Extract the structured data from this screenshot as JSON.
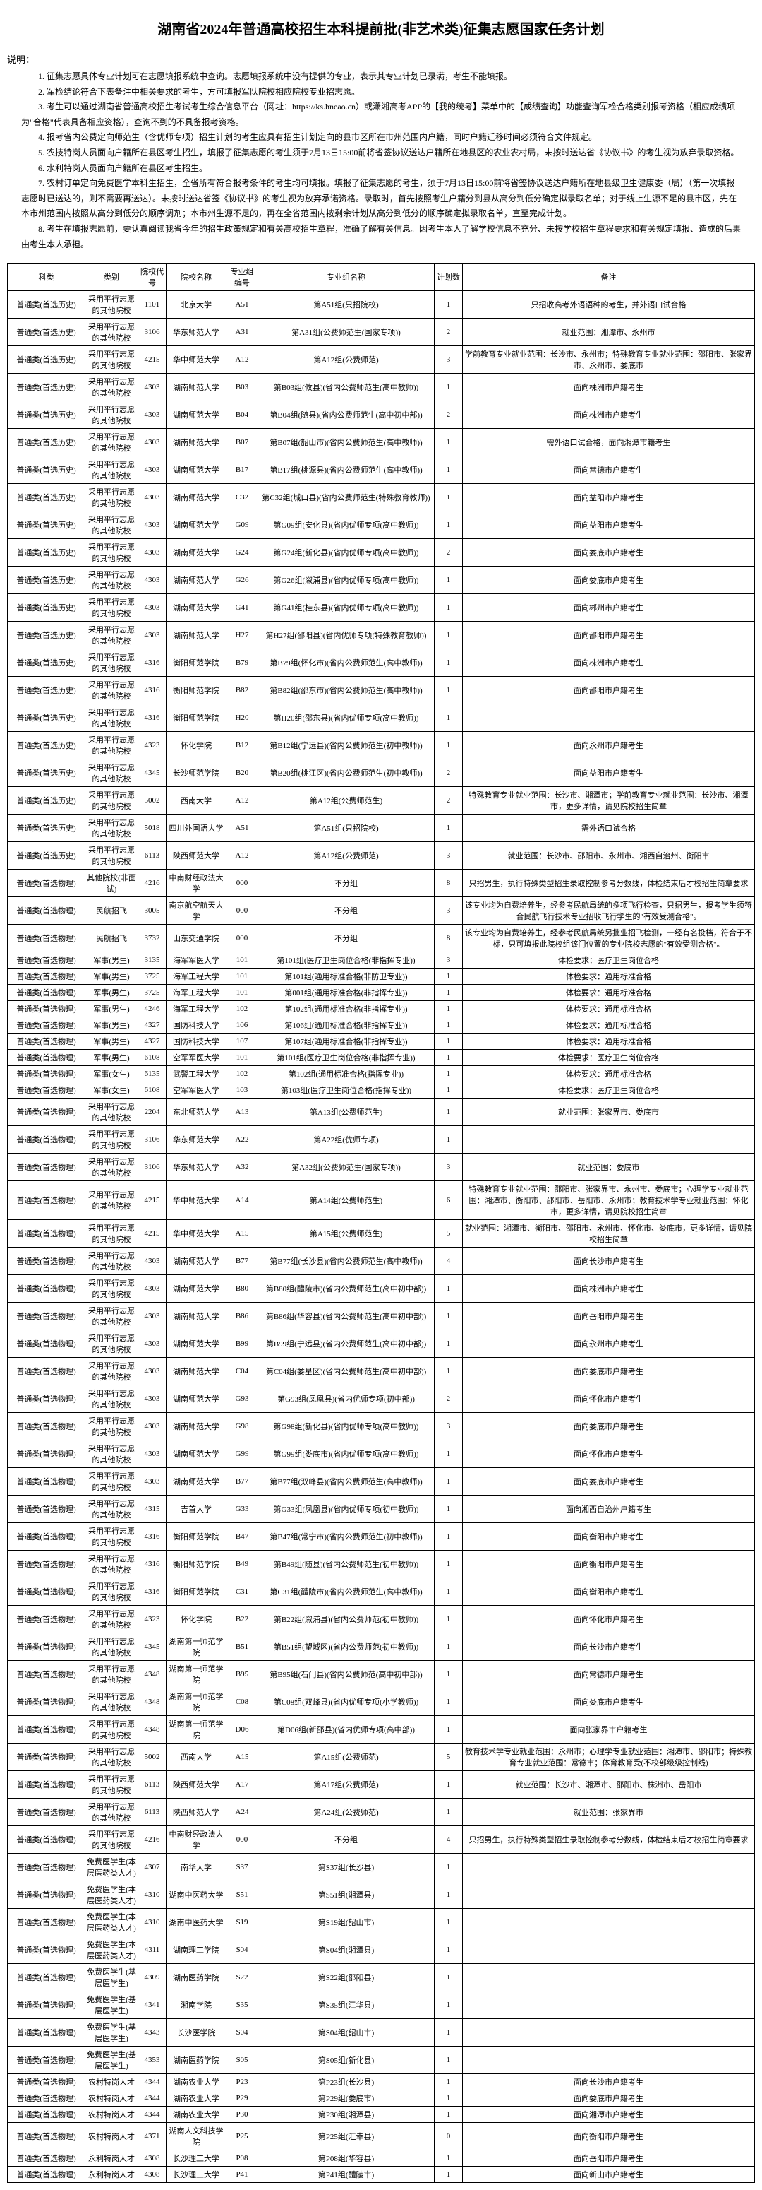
{
  "title": "湖南省2024年普通高校招生本科提前批(非艺术类)征集志愿国家任务计划",
  "notesLabel": "说明：",
  "notes": [
    "1. 征集志愿具体专业计划可在志愿填报系统中查询。志愿填报系统中没有提供的专业，表示其专业计划已录满，考生不能填报。",
    "2. 军检结论符合下表备注中相关要求的考生，方可填报军队院校相应院校专业招志愿。",
    "3. 考生可以通过湖南省普通高校招生考试考生综合信息平台（网址：https://ks.hneao.cn）或潇湘高考APP的【我的统考】菜单中的【成绩查询】功能查询军检合格类别报考资格（相应成绩项为\"合格\"代表具备相应资格），查询不到的不具备报考资格。",
    "4. 报考省内公费定向师范生（含优师专项）招生计划的考生应具有招生计划定向的县市区所在市州范围内户籍，同时户籍迁移时间必须符合文件规定。",
    "5. 农技特岗人员面向户籍所在县区考生招生，填报了征集志愿的考生须于7月13日15:00前将省签协议送达户籍所在地县区的农业农村局，未按时送达省《协议书》的考生视为放弃录取资格。",
    "6. 水利特岗人员面向户籍所在县区考生招生。",
    "7. 农村订单定向免费医学本科生招生，全省所有符合报考条件的考生均可填报。填报了征集志愿的考生，须于7月13日15:00前将省签协议送达户籍所在地县级卫生健康委（局）（第一次填报志愿时已送达的，则不需要再送达）。未按时送达省签《协议书》的考生视为放弃承诺资格。录取时，首先按照考生户籍分到县从高分到低分确定拟录取名单；对于线上生源不足的县市区，先在本市州范围内按照从高分到低分的顺序调剂；本市州生源不足的，再在全省范围内按剩余计划从高分到低分的顺序确定拟录取名单，直至完成计划。",
    "8. 考生在填报志愿前，要认真阅读我省今年的招生政策规定和有关高校招生章程，准确了解有关信息。因考生本人了解学校信息不充分、未按学校招生章程要求和有关规定填报、造成的后果由考生本人承担。"
  ],
  "headers": [
    "科类",
    "类别",
    "院校代号",
    "院校名称",
    "专业组编号",
    "专业组名称",
    "计划数",
    "备注"
  ],
  "rows": [
    [
      "普通类(首选历史)",
      "采用平行志愿的其他院校",
      "1101",
      "北京大学",
      "A51",
      "第A51组(只招院校)",
      "1",
      "只招收高考外语语种的考生，并外语口试合格"
    ],
    [
      "普通类(首选历史)",
      "采用平行志愿的其他院校",
      "3106",
      "华东师范大学",
      "A31",
      "第A31组(公费师范生(国家专项))",
      "2",
      "就业范围：湘潭市、永州市"
    ],
    [
      "普通类(首选历史)",
      "采用平行志愿的其他院校",
      "4215",
      "华中师范大学",
      "A12",
      "第A12组(公费师范)",
      "3",
      "学前教育专业就业范围：长沙市、永州市；特殊教育专业就业范围：邵阳市、张家界市、永州市、娄底市"
    ],
    [
      "普通类(首选历史)",
      "采用平行志愿的其他院校",
      "4303",
      "湖南师范大学",
      "B03",
      "第B03组(攸县)(省内公费师范生(高中教师))",
      "1",
      "面向株洲市户籍考生"
    ],
    [
      "普通类(首选历史)",
      "采用平行志愿的其他院校",
      "4303",
      "湖南师范大学",
      "B04",
      "第B04组(随县)(省内公费师范生(高中初中部))",
      "2",
      "面向株洲市户籍考生"
    ],
    [
      "普通类(首选历史)",
      "采用平行志愿的其他院校",
      "4303",
      "湖南师范大学",
      "B07",
      "第B07组(韶山市)(省内公费师范生(高中教师))",
      "1",
      "需外语口试合格，面向湘潭市籍考生"
    ],
    [
      "普通类(首选历史)",
      "采用平行志愿的其他院校",
      "4303",
      "湖南师范大学",
      "B17",
      "第B17组(桃源县)(省内公费师范生(高中教师))",
      "1",
      "面向常德市户籍考生"
    ],
    [
      "普通类(首选历史)",
      "采用平行志愿的其他院校",
      "4303",
      "湖南师范大学",
      "C32",
      "第C32组(城口县)(省内公费师范生(特殊教育教师))",
      "1",
      "面向益阳市户籍考生"
    ],
    [
      "普通类(首选历史)",
      "采用平行志愿的其他院校",
      "4303",
      "湖南师范大学",
      "G09",
      "第G09组(安化县)(省内优师专项(高中教师))",
      "1",
      "面向益阳市户籍考生"
    ],
    [
      "普通类(首选历史)",
      "采用平行志愿的其他院校",
      "4303",
      "湖南师范大学",
      "G24",
      "第G24组(新化县)(省内优师专项(高中教师))",
      "2",
      "面向娄底市户籍考生"
    ],
    [
      "普通类(首选历史)",
      "采用平行志愿的其他院校",
      "4303",
      "湖南师范大学",
      "G26",
      "第G26组(溆浦县)(省内优师专项(高中教师))",
      "1",
      "面向娄底市户籍考生"
    ],
    [
      "普通类(首选历史)",
      "采用平行志愿的其他院校",
      "4303",
      "湖南师范大学",
      "G41",
      "第G41组(桂东县)(省内优师专项(高中教师))",
      "1",
      "面向郴州市户籍考生"
    ],
    [
      "普通类(首选历史)",
      "采用平行志愿的其他院校",
      "4303",
      "湖南师范大学",
      "H27",
      "第H27组(邵阳县)(省内优师专项(特殊教育教师))",
      "1",
      "面向邵阳市户籍考生"
    ],
    [
      "普通类(首选历史)",
      "采用平行志愿的其他院校",
      "4316",
      "衡阳师范学院",
      "B79",
      "第B79组(怀化市)(省内公费师范生(高中教师))",
      "1",
      "面向株洲市户籍考生"
    ],
    [
      "普通类(首选历史)",
      "采用平行志愿的其他院校",
      "4316",
      "衡阳师范学院",
      "B82",
      "第B82组(邵东市)(省内公费师范生(高中教师))",
      "1",
      "面向邵阳市户籍考生"
    ],
    [
      "普通类(首选历史)",
      "采用平行志愿的其他院校",
      "4316",
      "衡阳师范学院",
      "H20",
      "第H20组(邵东县)(省内优师专项(高中教师))",
      "1",
      ""
    ],
    [
      "普通类(首选历史)",
      "采用平行志愿的其他院校",
      "4323",
      "怀化学院",
      "B12",
      "第B12组(宁远县)(省内公费师范生(初中教师))",
      "1",
      "面向永州市户籍考生"
    ],
    [
      "普通类(首选历史)",
      "采用平行志愿的其他院校",
      "4345",
      "长沙师范学院",
      "B20",
      "第B20组(桃江区)(省内公费师范生(初中教师))",
      "2",
      "面向益阳市户籍考生"
    ],
    [
      "普通类(首选历史)",
      "采用平行志愿的其他院校",
      "5002",
      "西南大学",
      "A12",
      "第A12组(公费师范生)",
      "2",
      "特殊教育专业就业范围：长沙市、湘潭市；学前教育专业就业范围：长沙市、湘潭市，更多详情，请见院校招生简章"
    ],
    [
      "普通类(首选历史)",
      "采用平行志愿的其他院校",
      "5018",
      "四川外国语大学",
      "A51",
      "第A51组(只招院校)",
      "1",
      "需外语口试合格"
    ],
    [
      "普通类(首选历史)",
      "采用平行志愿的其他院校",
      "6113",
      "陕西师范大学",
      "A12",
      "第A12组(公费师范)",
      "3",
      "就业范围：长沙市、邵阳市、永州市、湘西自治州、衡阳市"
    ],
    [
      "普通类(首选物理)",
      "其他院校(非面试)",
      "4216",
      "中南财经政法大学",
      "000",
      "不分组",
      "8",
      "只招男生，执行特殊类型招生录取控制参考分数线，体检结束后才校招生简章要求"
    ],
    [
      "普通类(首选物理)",
      "民航招飞",
      "3005",
      "南京航空航天大学",
      "000",
      "不分组",
      "3",
      "该专业均为自费培养生，经参考民航局统的多项飞行检查，只招男生，报考学生须符合民航飞行技术专业招收飞行学生的\"有效受测合格\"。"
    ],
    [
      "普通类(首选物理)",
      "民航招飞",
      "3732",
      "山东交通学院",
      "000",
      "不分组",
      "8",
      "该专业均为自费培养生，经参考民航局统另批业招飞检测，一经有名投档，符合于不标，只可填报此院校组该门位置的专业院校志愿的\"有效受测合格\"。"
    ],
    [
      "普通类(首选物理)",
      "军事(男生)",
      "3135",
      "海军军医大学",
      "101",
      "第101组(医疗卫生岗位合格(非指挥专业))",
      "3",
      "体检要求：医疗卫生岗位合格"
    ],
    [
      "普通类(首选物理)",
      "军事(男生)",
      "3725",
      "海军工程大学",
      "101",
      "第101组(通用标准合格(非防卫专业))",
      "1",
      "体检要求：通用标准合格"
    ],
    [
      "普通类(首选物理)",
      "军事(男生)",
      "3725",
      "海军工程大学",
      "101",
      "第001组(通用标准合格(非指挥专业))",
      "1",
      "体检要求：通用标准合格"
    ],
    [
      "普通类(首选物理)",
      "军事(男生)",
      "4246",
      "海军工程大学",
      "102",
      "第102组(通用标准合格(非指挥专业))",
      "1",
      "体检要求：通用标准合格"
    ],
    [
      "普通类(首选物理)",
      "军事(男生)",
      "4327",
      "国防科技大学",
      "106",
      "第106组(通用标准合格(非指挥专业))",
      "1",
      "体检要求：通用标准合格"
    ],
    [
      "普通类(首选物理)",
      "军事(男生)",
      "4327",
      "国防科技大学",
      "107",
      "第107组(通用标准合格(非指挥专业))",
      "1",
      "体检要求：通用标准合格"
    ],
    [
      "普通类(首选物理)",
      "军事(男生)",
      "6108",
      "空军军医大学",
      "101",
      "第101组(医疗卫生岗位合格(非指挥专业))",
      "1",
      "体检要求：医疗卫生岗位合格"
    ],
    [
      "普通类(首选物理)",
      "军事(女生)",
      "6135",
      "武警工程大学",
      "102",
      "第102组(通用标准合格(指挥专业))",
      "1",
      "体检要求：通用标准合格"
    ],
    [
      "普通类(首选物理)",
      "军事(女生)",
      "6108",
      "空军军医大学",
      "103",
      "第103组(医疗卫生岗位合格(指挥专业))",
      "1",
      "体检要求：医疗卫生岗位合格"
    ],
    [
      "普通类(首选物理)",
      "采用平行志愿的其他院校",
      "2204",
      "东北师范大学",
      "A13",
      "第A13组(公费师范生)",
      "1",
      "就业范围：张家界市、娄底市"
    ],
    [
      "普通类(首选物理)",
      "采用平行志愿的其他院校",
      "3106",
      "华东师范大学",
      "A22",
      "第A22组(优师专项)",
      "1",
      ""
    ],
    [
      "普通类(首选物理)",
      "采用平行志愿的其他院校",
      "3106",
      "华东师范大学",
      "A32",
      "第A32组(公费师范生(国家专项))",
      "3",
      "就业范围：娄底市"
    ],
    [
      "普通类(首选物理)",
      "采用平行志愿的其他院校",
      "4215",
      "华中师范大学",
      "A14",
      "第A14组(公费师范生)",
      "6",
      "特殊教育专业就业范围：邵阳市、张家界市、永州市、娄底市；心理学专业就业范围：湘潭市、衡阳市、邵阳市、岳阳市、永州市；教育技术学专业就业范围：怀化市，更多详情，请见院校招生简章"
    ],
    [
      "普通类(首选物理)",
      "采用平行志愿的其他院校",
      "4215",
      "华中师范大学",
      "A15",
      "第A15组(公费师范生)",
      "5",
      "就业范围：湘潭市、衡阳市、邵阳市、永州市、怀化市、娄底市，更多详情，请见院校招生简章"
    ],
    [
      "普通类(首选物理)",
      "采用平行志愿的其他院校",
      "4303",
      "湖南师范大学",
      "B77",
      "第B77组(长沙县)(省内公费师范生(高中教师))",
      "4",
      "面向长沙市户籍考生"
    ],
    [
      "普通类(首选物理)",
      "采用平行志愿的其他院校",
      "4303",
      "湖南师范大学",
      "B80",
      "第B80组(醴陵市)(省内公费师范生(高中初中部))",
      "1",
      "面向株洲市户籍考生"
    ],
    [
      "普通类(首选物理)",
      "采用平行志愿的其他院校",
      "4303",
      "湖南师范大学",
      "B86",
      "第B86组(华容县)(省内公费师范生(高中初中部))",
      "1",
      "面向岳阳市户籍考生"
    ],
    [
      "普通类(首选物理)",
      "采用平行志愿的其他院校",
      "4303",
      "湖南师范大学",
      "B99",
      "第B99组(宁远县)(省内公费师范生(高中初中部))",
      "1",
      "面向永州市户籍考生"
    ],
    [
      "普通类(首选物理)",
      "采用平行志愿的其他院校",
      "4303",
      "湖南师范大学",
      "C04",
      "第C04组(娄星区)(省内公费师范生(高中初中部))",
      "1",
      "面向娄底市户籍考生"
    ],
    [
      "普通类(首选物理)",
      "采用平行志愿的其他院校",
      "4303",
      "湖南师范大学",
      "G93",
      "第G93组(凤凰县)(省内优师专项(初中部))",
      "2",
      "面向怀化市户籍考生"
    ],
    [
      "普通类(首选物理)",
      "采用平行志愿的其他院校",
      "4303",
      "湖南师范大学",
      "G98",
      "第G98组(新化县)(省内优师专项(高中教师))",
      "3",
      "面向娄底市户籍考生"
    ],
    [
      "普通类(首选物理)",
      "采用平行志愿的其他院校",
      "4303",
      "湖南师范大学",
      "G99",
      "第G99组(娄底市)(省内优师专项(高中教师))",
      "1",
      "面向怀化市户籍考生"
    ],
    [
      "普通类(首选物理)",
      "采用平行志愿的其他院校",
      "4303",
      "湖南师范大学",
      "B77",
      "第B77组(双峰县)(省内公费师范生(高中教师))",
      "1",
      "面向娄底市户籍考生"
    ],
    [
      "普通类(首选物理)",
      "采用平行志愿的其他院校",
      "4315",
      "吉首大学",
      "G33",
      "第G33组(凤凰县)(省内优师专项(初中教师))",
      "1",
      "面向湘西自治州户籍考生"
    ],
    [
      "普通类(首选物理)",
      "采用平行志愿的其他院校",
      "4316",
      "衡阳师范学院",
      "B47",
      "第B47组(常宁市)(省内公费师范生(初中教师))",
      "1",
      "面向衡阳市户籍考生"
    ],
    [
      "普通类(首选物理)",
      "采用平行志愿的其他院校",
      "4316",
      "衡阳师范学院",
      "B49",
      "第B49组(随县)(省内公费师范生(初中教师))",
      "1",
      "面向衡阳市户籍考生"
    ],
    [
      "普通类(首选物理)",
      "采用平行志愿的其他院校",
      "4316",
      "衡阳师范学院",
      "C31",
      "第C31组(醴陵市)(省内公费师范生(高中教师))",
      "1",
      "面向衡阳市户籍考生"
    ],
    [
      "普通类(首选物理)",
      "采用平行志愿的其他院校",
      "4323",
      "怀化学院",
      "B22",
      "第B22组(溆浦县)(省内公费师范(初中教师))",
      "1",
      "面向怀化市户籍考生"
    ],
    [
      "普通类(首选物理)",
      "采用平行志愿的其他院校",
      "4345",
      "湖南第一师范学院",
      "B51",
      "第B51组(望城区)(省内公费师范(初中教师))",
      "1",
      "面向长沙市户籍考生"
    ],
    [
      "普通类(首选物理)",
      "采用平行志愿的其他院校",
      "4348",
      "湖南第一师范学院",
      "B95",
      "第B95组(石门县)(省内公费师范(高中初中部))",
      "1",
      "面向常德市户籍考生"
    ],
    [
      "普通类(首选物理)",
      "采用平行志愿的其他院校",
      "4348",
      "湖南第一师范学院",
      "C08",
      "第C08组(双峰县)(省内优师专项(小学教师))",
      "1",
      "面向娄底市户籍考生"
    ],
    [
      "普通类(首选物理)",
      "采用平行志愿的其他院校",
      "4348",
      "湖南第一师范学院",
      "D06",
      "第D06组(新邵县)(省内优师专项(高中部))",
      "1",
      "面向张家界市户籍考生"
    ],
    [
      "普通类(首选物理)",
      "采用平行志愿的其他院校",
      "5002",
      "西南大学",
      "A15",
      "第A15组(公费师范)",
      "5",
      "教育技术学专业就业范围：永州市；心理学专业就业范围：湘潭市、邵阳市；特殊教育专业就业范围：常德市；体育教育受(不校部级级控制线)"
    ],
    [
      "普通类(首选物理)",
      "采用平行志愿的其他院校",
      "6113",
      "陕西师范大学",
      "A17",
      "第A17组(公费师范)",
      "1",
      "就业范围：长沙市、湘潭市、邵阳市、株洲市、岳阳市"
    ],
    [
      "普通类(首选物理)",
      "采用平行志愿的其他院校",
      "6113",
      "陕西师范大学",
      "A24",
      "第A24组(公费师范)",
      "1",
      "就业范围：张家界市"
    ],
    [
      "普通类(首选物理)",
      "采用平行志愿的其他院校",
      "4216",
      "中南财经政法大学",
      "000",
      "不分组",
      "4",
      "只招男生，执行特殊类型招生录取控制参考分数线，体检结束后才校招生简章要求"
    ],
    [
      "普通类(首选物理)",
      "免费医学生(本层医药类人才)",
      "4307",
      "南华大学",
      "S37",
      "第S37组(长沙县)",
      "1",
      ""
    ],
    [
      "普通类(首选物理)",
      "免费医学生(本层医药类人才)",
      "4310",
      "湖南中医药大学",
      "S51",
      "第S51组(湘潭县)",
      "1",
      ""
    ],
    [
      "普通类(首选物理)",
      "免费医学生(本层医药类人才)",
      "4310",
      "湖南中医药大学",
      "S19",
      "第S19组(韶山市)",
      "1",
      ""
    ],
    [
      "普通类(首选物理)",
      "免费医学生(本层医药类人才)",
      "4311",
      "湖南理工学院",
      "S04",
      "第S04组(湘潭县)",
      "1",
      ""
    ],
    [
      "普通类(首选物理)",
      "免费医学生(基层医学生)",
      "4309",
      "湖南医药学院",
      "S22",
      "第S22组(邵阳县)",
      "1",
      ""
    ],
    [
      "普通类(首选物理)",
      "免费医学生(基层医学生)",
      "4341",
      "湘南学院",
      "S35",
      "第S35组(江华县)",
      "1",
      ""
    ],
    [
      "普通类(首选物理)",
      "免费医学生(基层医学生)",
      "4343",
      "长沙医学院",
      "S04",
      "第S04组(韶山市)",
      "1",
      ""
    ],
    [
      "普通类(首选物理)",
      "免费医学生(基层医学生)",
      "4353",
      "湖南医药学院",
      "S05",
      "第S05组(新化县)",
      "1",
      ""
    ],
    [
      "普通类(首选物理)",
      "农村特岗人才",
      "4344",
      "湖南农业大学",
      "P23",
      "第P23组(长沙县)",
      "1",
      "面向长沙市户籍考生"
    ],
    [
      "普通类(首选物理)",
      "农村特岗人才",
      "4344",
      "湖南农业大学",
      "P29",
      "第P29组(娄底市)",
      "1",
      "面向娄底市户籍考生"
    ],
    [
      "普通类(首选物理)",
      "农村特岗人才",
      "4344",
      "湖南农业大学",
      "P30",
      "第P30组(湘潭县)",
      "1",
      "面向湘潭市户籍考生"
    ],
    [
      "普通类(首选物理)",
      "农村特岗人才",
      "4371",
      "湖南人文科技学院",
      "P25",
      "第P25组(汇幸县)",
      "0",
      "面向衡阳市户籍考生"
    ],
    [
      "普通类(首选物理)",
      "永利特岗人才",
      "4308",
      "长沙理工大学",
      "P08",
      "第P08组(华容县)",
      "1",
      "面向岳阳市户籍考生"
    ],
    [
      "普通类(首选物理)",
      "永利特岗人才",
      "4308",
      "长沙理工大学",
      "P41",
      "第P41组(醴陵市)",
      "1",
      "面向新山市户籍考生"
    ]
  ]
}
